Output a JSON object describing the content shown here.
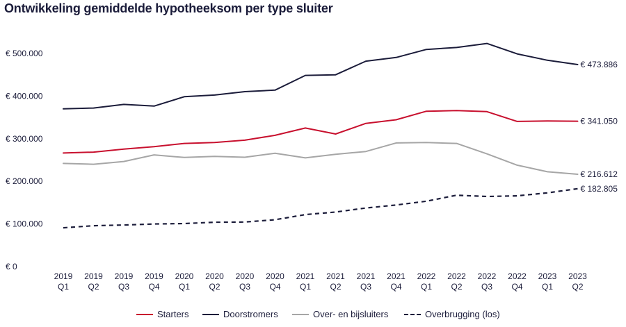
{
  "title": "Ontwikkeling gemiddelde hypotheeksom per type sluiter",
  "colors": {
    "starters": "#c8102e",
    "doorstromers": "#1b1c3a",
    "over": "#a6a6a6",
    "overbrugging": "#1b1c3a",
    "text": "#1b1c3a"
  },
  "chart_data": {
    "type": "line",
    "title": "Ontwikkeling gemiddelde hypotheeksom per type sluiter",
    "categories": [
      "2019 Q1",
      "2019 Q2",
      "2019 Q3",
      "2019 Q4",
      "2020 Q1",
      "2020 Q2",
      "2020 Q3",
      "2020 Q4",
      "2021 Q1",
      "2021 Q2",
      "2021 Q3",
      "2021 Q4",
      "2022 Q1",
      "2022 Q2",
      "2022 Q3",
      "2022 Q4",
      "2023 Q1",
      "2023 Q2"
    ],
    "category_lines": [
      [
        "2019",
        "Q1"
      ],
      [
        "2019",
        "Q2"
      ],
      [
        "2019",
        "Q3"
      ],
      [
        "2019",
        "Q4"
      ],
      [
        "2020",
        "Q1"
      ],
      [
        "2020",
        "Q2"
      ],
      [
        "2020",
        "Q3"
      ],
      [
        "2020",
        "Q4"
      ],
      [
        "2021",
        "Q1"
      ],
      [
        "2021",
        "Q2"
      ],
      [
        "2021",
        "Q3"
      ],
      [
        "2021",
        "Q4"
      ],
      [
        "2022",
        "Q1"
      ],
      [
        "2022",
        "Q2"
      ],
      [
        "2022",
        "Q3"
      ],
      [
        "2022",
        "Q4"
      ],
      [
        "2023",
        "Q1"
      ],
      [
        "2023",
        "Q2"
      ]
    ],
    "yticks": [
      0,
      100000,
      200000,
      300000,
      400000,
      500000
    ],
    "ytick_labels": [
      "€ 0",
      "€ 100.000",
      "€ 200.000",
      "€ 300.000",
      "€ 400.000",
      "€ 500.000"
    ],
    "ylim": [
      0,
      500000
    ],
    "xlabel": "",
    "ylabel": "",
    "grid": false,
    "legend_position": "bottom",
    "series": [
      {
        "key": "starters",
        "name": "Starters",
        "style": "solid",
        "values": [
          266500,
          268500,
          275500,
          281500,
          289000,
          291000,
          296500,
          308000,
          325000,
          311000,
          336000,
          344500,
          364500,
          366000,
          363500,
          340500,
          341500,
          341050
        ],
        "end_label": "€ 341.050"
      },
      {
        "key": "doorstromers",
        "name": "Doorstromers",
        "style": "solid",
        "values": [
          370000,
          372000,
          380500,
          376500,
          398500,
          402500,
          410500,
          414000,
          448500,
          450000,
          482000,
          490500,
          509500,
          514000,
          523500,
          499000,
          484000,
          473886
        ],
        "end_label": "€ 473.886"
      },
      {
        "key": "over",
        "name": "Over- en bijsluiters",
        "style": "solid",
        "values": [
          242000,
          240000,
          246500,
          262000,
          256000,
          258500,
          256500,
          266000,
          255000,
          263500,
          270000,
          290000,
          291000,
          289000,
          264500,
          238000,
          222500,
          216612
        ],
        "end_label": "€ 216.612"
      },
      {
        "key": "overbrugging",
        "name": "Overbrugging (los)",
        "style": "dashed",
        "values": [
          91000,
          96000,
          97500,
          100000,
          101000,
          104000,
          104500,
          110000,
          122000,
          128000,
          137500,
          144500,
          153500,
          167500,
          164500,
          166000,
          173000,
          182805
        ],
        "end_label": "€ 182.805"
      }
    ]
  }
}
